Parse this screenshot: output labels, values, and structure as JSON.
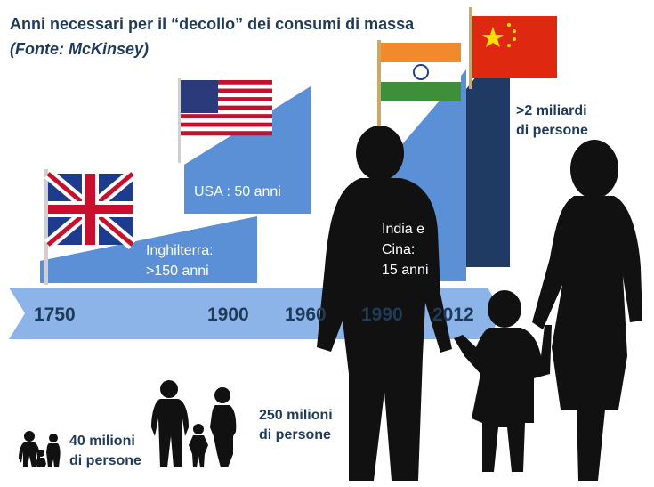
{
  "header": {
    "title": "Anni necessari per il “decollo” dei consumi di massa",
    "source": "(Fonte: McKinsey)"
  },
  "stages": [
    {
      "country": "Inghilterra",
      "label_line1": "Inghilterra:",
      "label_line2": ">150 anni",
      "flag_icon": "uk-flag-icon"
    },
    {
      "country": "USA",
      "label_line1": "USA : 50 anni",
      "label_line2": "",
      "flag_icon": "usa-flag-icon"
    },
    {
      "country": "India e Cina",
      "label_line1": "India e",
      "label_line2": "Cina:",
      "label_line3": "15 anni",
      "flag_icon": "india-flag-icon"
    },
    {
      "country": "Cina",
      "label_line1": ">2 miliardi",
      "label_line2": "di persone",
      "flag_icon": "china-flag-icon"
    }
  ],
  "timeline": {
    "years": [
      "1750",
      "1900",
      "1960",
      "1990",
      "2012"
    ]
  },
  "population": [
    {
      "line1": "40 milioni",
      "line2": "di persone"
    },
    {
      "line1": "250 milioni",
      "line2": "di persone"
    }
  ],
  "colors": {
    "title": "#1f3b5a",
    "light_blue": "#5b8fd6",
    "arrow_blue": "#8db4e8",
    "dark_navy": "#1f3b63",
    "silhouette": "#111111"
  }
}
